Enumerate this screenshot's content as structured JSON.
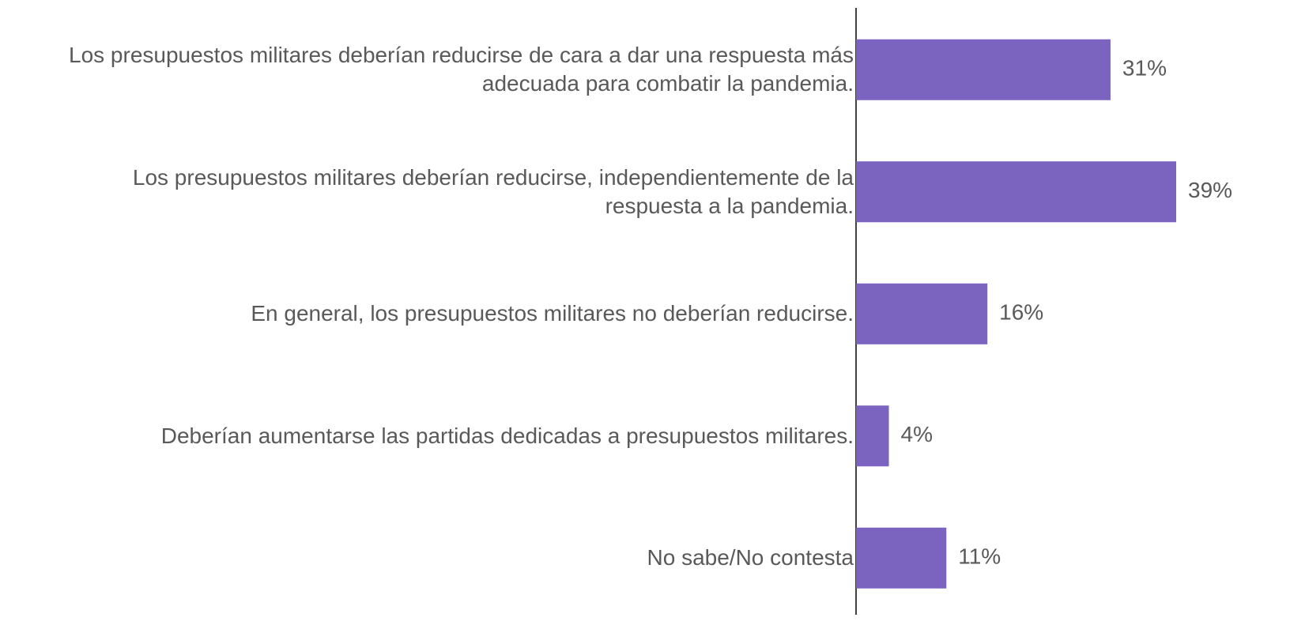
{
  "chart_data": {
    "type": "bar",
    "orientation": "horizontal",
    "categories": [
      "Los presupuestos militares deberían reducirse de cara a dar una respuesta más adecuada para combatir la pandemia.",
      "Los presupuestos militares deberían reducirse, independientemente de la respuesta a la pandemia.",
      "En general, los presupuestos militares no deberían reducirse.",
      "Deberían aumentarse las partidas dedicadas a presupuestos militares.",
      "No sabe/No contesta"
    ],
    "values": [
      31,
      39,
      16,
      4,
      11
    ],
    "value_labels": [
      "31%",
      "39%",
      "16%",
      "4%",
      "11%"
    ],
    "color": "#7b64c0"
  }
}
